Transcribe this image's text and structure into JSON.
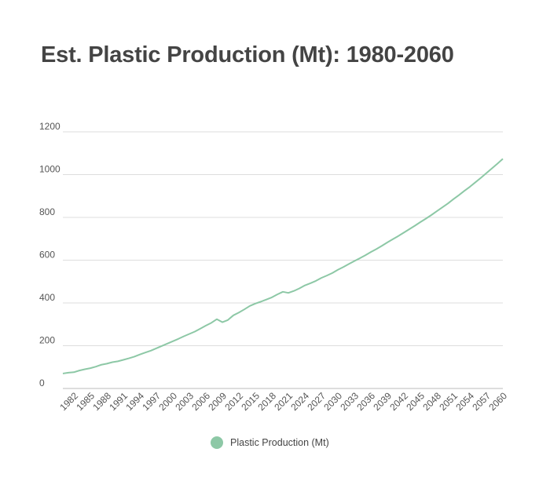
{
  "chart_data": {
    "type": "line",
    "title": "Est. Plastic Production (Mt): 1980-2060",
    "xlabel": "",
    "ylabel": "",
    "x": [
      1980,
      1981,
      1982,
      1983,
      1984,
      1985,
      1986,
      1987,
      1988,
      1989,
      1990,
      1991,
      1992,
      1993,
      1994,
      1995,
      1996,
      1997,
      1998,
      1999,
      2000,
      2001,
      2002,
      2003,
      2004,
      2005,
      2006,
      2007,
      2008,
      2009,
      2010,
      2011,
      2012,
      2013,
      2014,
      2015,
      2016,
      2017,
      2018,
      2019,
      2020,
      2021,
      2022,
      2023,
      2024,
      2025,
      2026,
      2027,
      2028,
      2029,
      2030,
      2031,
      2032,
      2033,
      2034,
      2035,
      2036,
      2037,
      2038,
      2039,
      2040,
      2041,
      2042,
      2043,
      2044,
      2045,
      2046,
      2047,
      2048,
      2049,
      2050,
      2051,
      2052,
      2053,
      2054,
      2055,
      2056,
      2057,
      2058,
      2059,
      2060
    ],
    "x_tick_labels": [
      "1982",
      "1985",
      "1988",
      "1991",
      "1994",
      "1997",
      "2000",
      "2003",
      "2006",
      "2009",
      "2012",
      "2015",
      "2018",
      "2021",
      "2024",
      "2027",
      "2030",
      "2033",
      "2036",
      "2039",
      "2042",
      "2045",
      "2048",
      "2051",
      "2054",
      "2057",
      "2060"
    ],
    "y_ticks": [
      0,
      200,
      400,
      600,
      800,
      1000,
      1200
    ],
    "ylim": [
      0,
      1200
    ],
    "grid": true,
    "legend_position": "bottom-center",
    "series": [
      {
        "name": "Plastic Production (Mt)",
        "color": "#8dc8a6",
        "values": [
          70,
          74,
          76,
          84,
          90,
          95,
          102,
          111,
          116,
          123,
          127,
          134,
          141,
          149,
          159,
          168,
          177,
          188,
          199,
          210,
          221,
          232,
          244,
          255,
          266,
          280,
          294,
          307,
          324,
          310,
          320,
          342,
          355,
          370,
          386,
          397,
          406,
          416,
          426,
          440,
          452,
          447,
          456,
          468,
          482,
          492,
          503,
          517,
          528,
          540,
          555,
          568,
          582,
          596,
          609,
          623,
          638,
          652,
          667,
          683,
          698,
          713,
          729,
          745,
          761,
          778,
          794,
          811,
          829,
          847,
          865,
          885,
          904,
          924,
          943,
          964,
          985,
          1007,
          1029,
          1051,
          1074
        ]
      }
    ]
  }
}
